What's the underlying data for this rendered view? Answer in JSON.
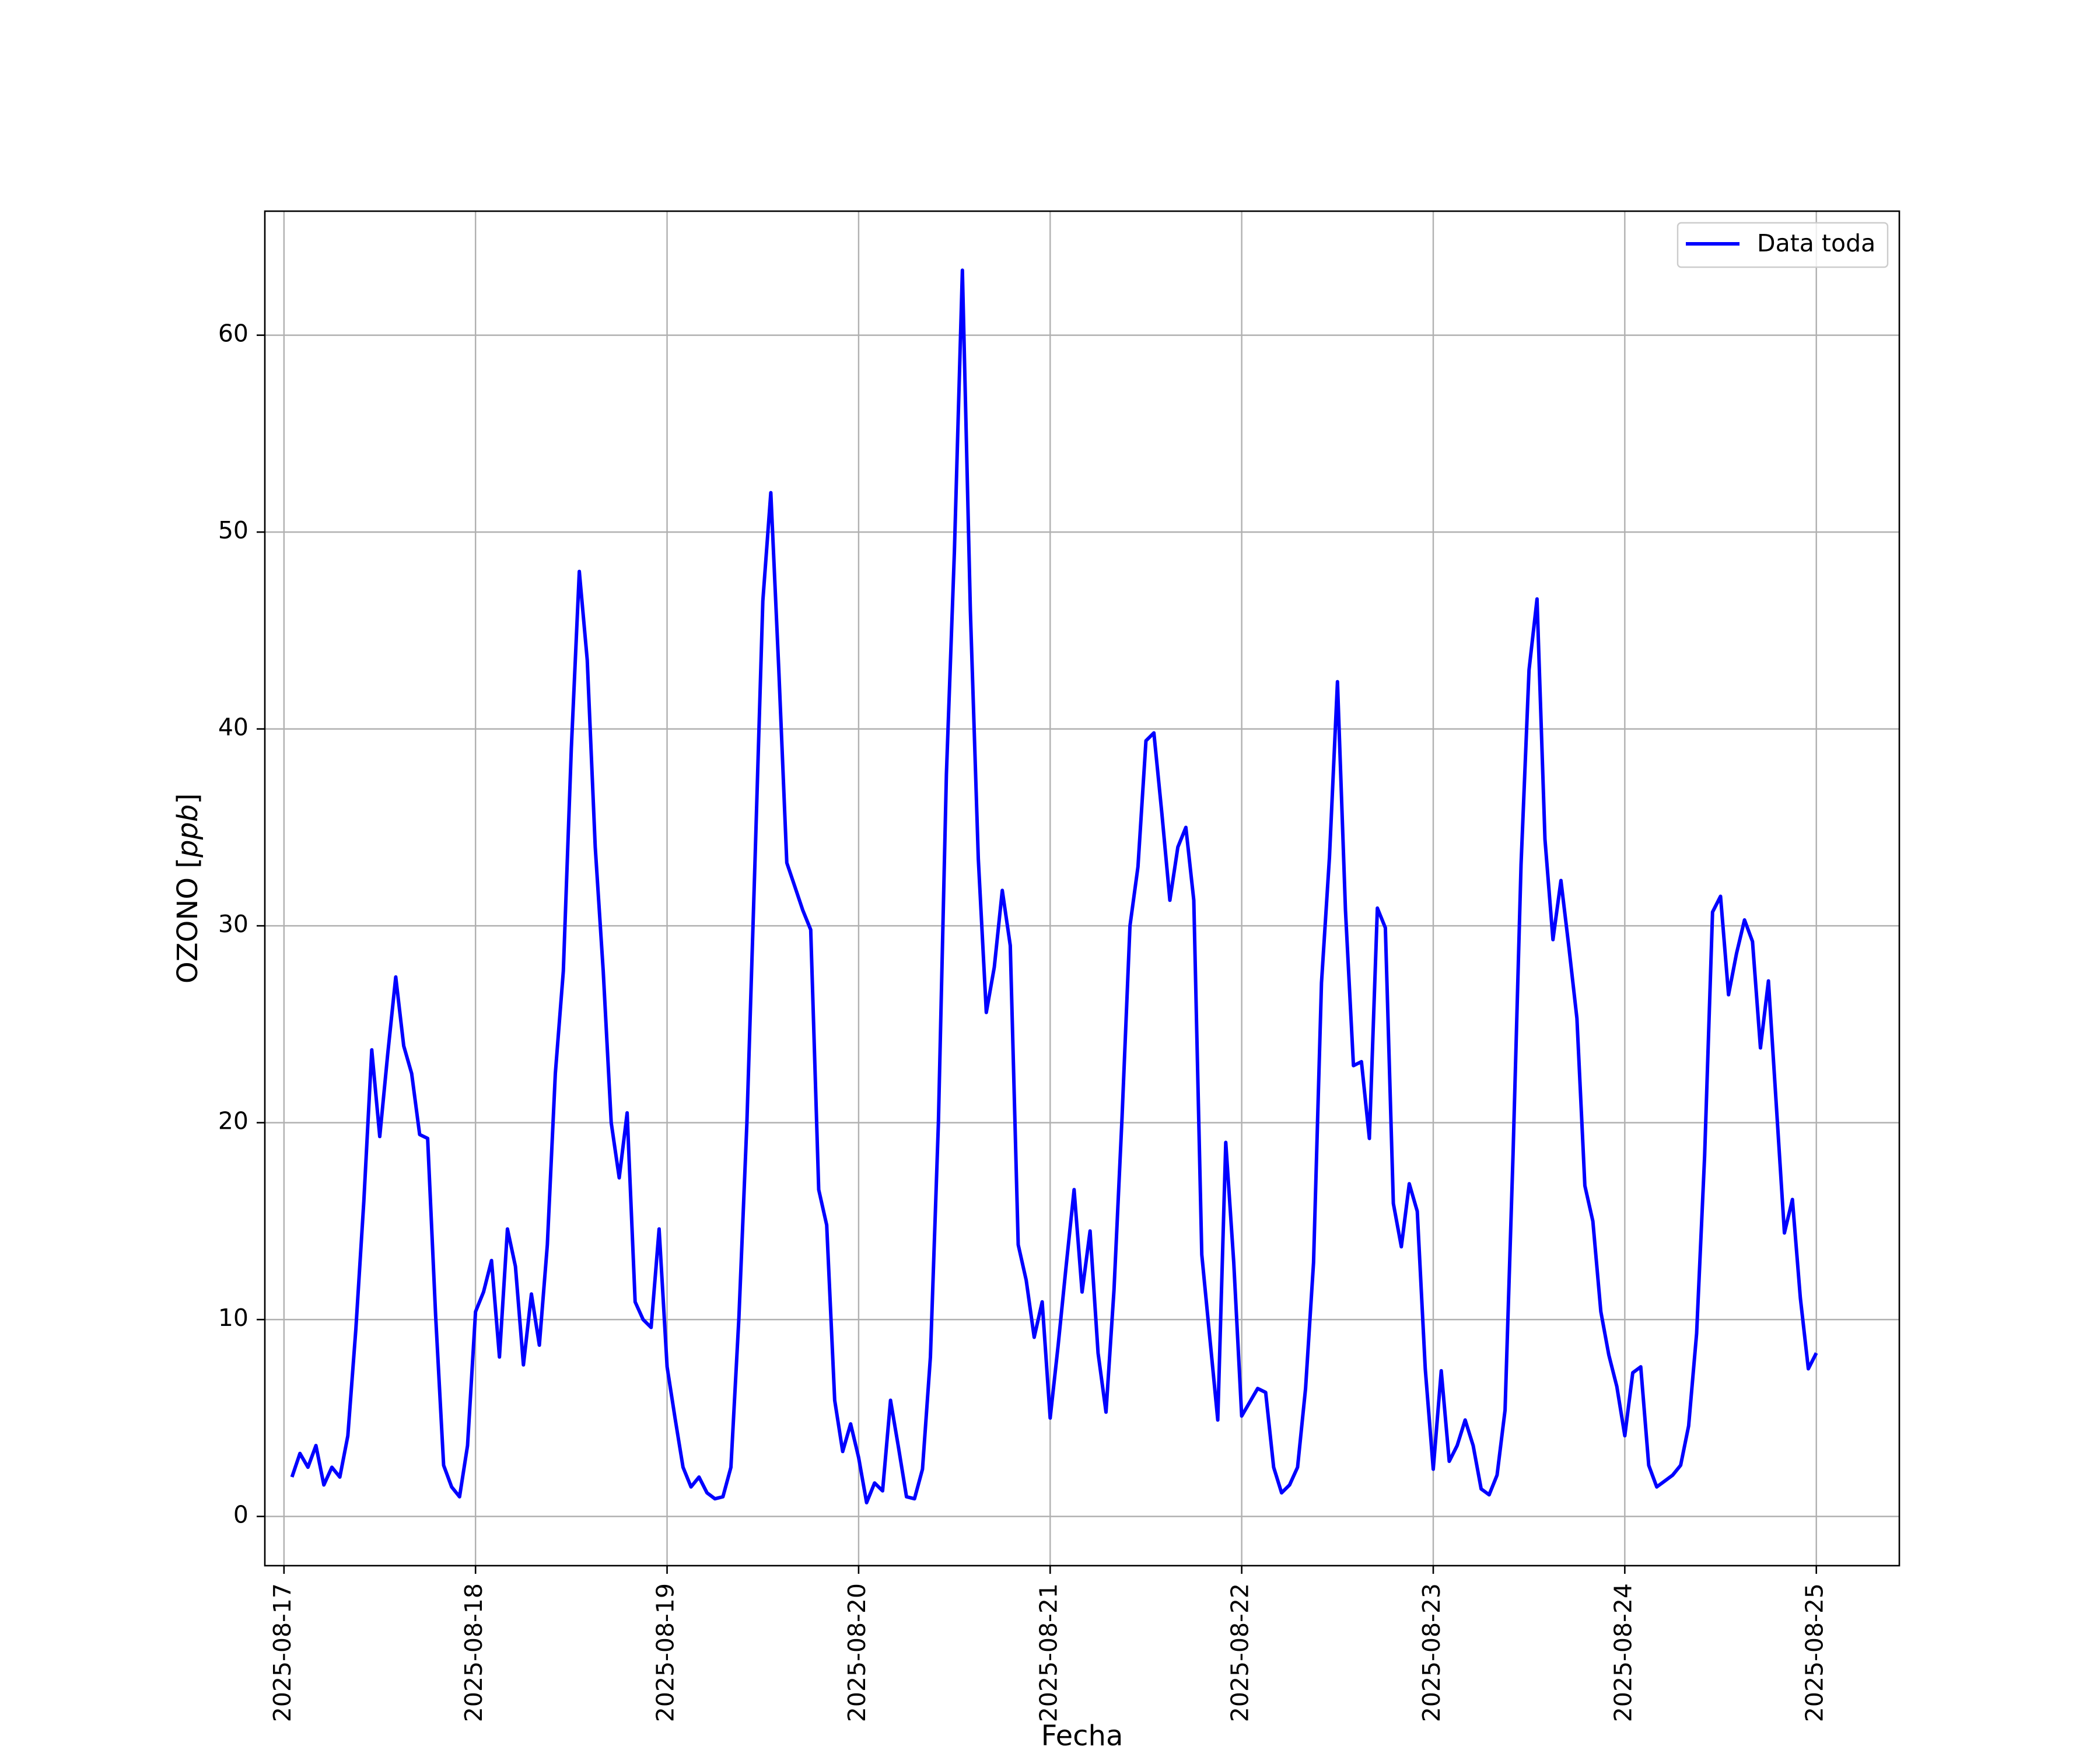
{
  "chart_data": {
    "type": "line",
    "xlabel": "Fecha",
    "ylabel": "OZONO [ppb]",
    "ylabel_main": "OZONO",
    "ylabel_unit": "ppb",
    "x_range": [
      "2025-08-16T21:36",
      "2025-08-25T10:24"
    ],
    "ylim": [
      -2.5,
      66.3
    ],
    "grid": true,
    "legend_position": "upper right",
    "x_ticks": [
      "2025-08-17",
      "2025-08-18",
      "2025-08-19",
      "2025-08-20",
      "2025-08-21",
      "2025-08-22",
      "2025-08-23",
      "2025-08-24",
      "2025-08-25"
    ],
    "y_ticks": [
      0,
      10,
      20,
      30,
      40,
      50,
      60
    ],
    "y_tick_labels": [
      "0",
      "10",
      "20",
      "30",
      "40",
      "50",
      "60"
    ],
    "series": [
      {
        "name": "Data toda",
        "color": "#0000ff",
        "x": [
          "2025-08-17 01:00",
          "2025-08-17 02:00",
          "2025-08-17 03:00",
          "2025-08-17 04:00",
          "2025-08-17 05:00",
          "2025-08-17 06:00",
          "2025-08-17 07:00",
          "2025-08-17 08:00",
          "2025-08-17 09:00",
          "2025-08-17 10:00",
          "2025-08-17 11:00",
          "2025-08-17 12:00",
          "2025-08-17 13:00",
          "2025-08-17 14:00",
          "2025-08-17 15:00",
          "2025-08-17 16:00",
          "2025-08-17 17:00",
          "2025-08-17 18:00",
          "2025-08-17 19:00",
          "2025-08-17 20:00",
          "2025-08-17 21:00",
          "2025-08-17 22:00",
          "2025-08-17 23:00",
          "2025-08-18 00:00",
          "2025-08-18 01:00",
          "2025-08-18 02:00",
          "2025-08-18 03:00",
          "2025-08-18 04:00",
          "2025-08-18 05:00",
          "2025-08-18 06:00",
          "2025-08-18 07:00",
          "2025-08-18 08:00",
          "2025-08-18 09:00",
          "2025-08-18 10:00",
          "2025-08-18 11:00",
          "2025-08-18 12:00",
          "2025-08-18 13:00",
          "2025-08-18 14:00",
          "2025-08-18 15:00",
          "2025-08-18 16:00",
          "2025-08-18 17:00",
          "2025-08-18 18:00",
          "2025-08-18 19:00",
          "2025-08-18 20:00",
          "2025-08-18 21:00",
          "2025-08-18 22:00",
          "2025-08-18 23:00",
          "2025-08-19 00:00",
          "2025-08-19 01:00",
          "2025-08-19 02:00",
          "2025-08-19 03:00",
          "2025-08-19 04:00",
          "2025-08-19 05:00",
          "2025-08-19 06:00",
          "2025-08-19 07:00",
          "2025-08-19 08:00",
          "2025-08-19 09:00",
          "2025-08-19 10:00",
          "2025-08-19 11:00",
          "2025-08-19 12:00",
          "2025-08-19 13:00",
          "2025-08-19 14:00",
          "2025-08-19 15:00",
          "2025-08-19 16:00",
          "2025-08-19 17:00",
          "2025-08-19 18:00",
          "2025-08-19 19:00",
          "2025-08-19 20:00",
          "2025-08-19 21:00",
          "2025-08-19 22:00",
          "2025-08-19 23:00",
          "2025-08-20 00:00",
          "2025-08-20 01:00",
          "2025-08-20 02:00",
          "2025-08-20 03:00",
          "2025-08-20 04:00",
          "2025-08-20 05:00",
          "2025-08-20 06:00",
          "2025-08-20 07:00",
          "2025-08-20 08:00",
          "2025-08-20 09:00",
          "2025-08-20 10:00",
          "2025-08-20 11:00",
          "2025-08-20 12:00",
          "2025-08-20 13:00",
          "2025-08-20 14:00",
          "2025-08-20 15:00",
          "2025-08-20 16:00",
          "2025-08-20 17:00",
          "2025-08-20 18:00",
          "2025-08-20 19:00",
          "2025-08-20 20:00",
          "2025-08-20 21:00",
          "2025-08-20 22:00",
          "2025-08-20 23:00",
          "2025-08-21 00:00",
          "2025-08-21 01:00",
          "2025-08-21 02:00",
          "2025-08-21 03:00",
          "2025-08-21 04:00",
          "2025-08-21 05:00",
          "2025-08-21 06:00",
          "2025-08-21 07:00",
          "2025-08-21 08:00",
          "2025-08-21 09:00",
          "2025-08-21 10:00",
          "2025-08-21 11:00",
          "2025-08-21 12:00",
          "2025-08-21 13:00",
          "2025-08-21 14:00",
          "2025-08-21 15:00",
          "2025-08-21 16:00",
          "2025-08-21 17:00",
          "2025-08-21 18:00",
          "2025-08-21 19:00",
          "2025-08-21 20:00",
          "2025-08-21 21:00",
          "2025-08-21 22:00",
          "2025-08-21 23:00",
          "2025-08-22 00:00",
          "2025-08-22 01:00",
          "2025-08-22 02:00",
          "2025-08-22 03:00",
          "2025-08-22 04:00",
          "2025-08-22 05:00",
          "2025-08-22 06:00",
          "2025-08-22 07:00",
          "2025-08-22 08:00",
          "2025-08-22 09:00",
          "2025-08-22 10:00",
          "2025-08-22 11:00",
          "2025-08-22 12:00",
          "2025-08-22 13:00",
          "2025-08-22 14:00",
          "2025-08-22 15:00",
          "2025-08-22 16:00",
          "2025-08-22 17:00",
          "2025-08-22 18:00",
          "2025-08-22 19:00",
          "2025-08-22 20:00",
          "2025-08-22 21:00",
          "2025-08-22 22:00",
          "2025-08-22 23:00",
          "2025-08-23 00:00",
          "2025-08-23 01:00",
          "2025-08-23 02:00",
          "2025-08-23 03:00",
          "2025-08-23 04:00",
          "2025-08-23 05:00",
          "2025-08-23 06:00",
          "2025-08-23 07:00",
          "2025-08-23 08:00",
          "2025-08-23 09:00",
          "2025-08-23 10:00",
          "2025-08-23 11:00",
          "2025-08-23 12:00",
          "2025-08-23 13:00",
          "2025-08-23 14:00",
          "2025-08-23 15:00",
          "2025-08-23 16:00",
          "2025-08-23 17:00",
          "2025-08-23 18:00",
          "2025-08-23 19:00",
          "2025-08-23 20:00",
          "2025-08-23 21:00",
          "2025-08-23 22:00",
          "2025-08-23 23:00",
          "2025-08-24 00:00",
          "2025-08-24 01:00",
          "2025-08-24 02:00",
          "2025-08-24 03:00",
          "2025-08-24 04:00",
          "2025-08-24 05:00",
          "2025-08-24 06:00",
          "2025-08-24 07:00",
          "2025-08-24 08:00",
          "2025-08-24 09:00",
          "2025-08-24 10:00",
          "2025-08-24 11:00",
          "2025-08-24 12:00",
          "2025-08-24 13:00",
          "2025-08-24 14:00",
          "2025-08-24 15:00",
          "2025-08-24 16:00",
          "2025-08-24 17:00",
          "2025-08-24 18:00",
          "2025-08-24 19:00",
          "2025-08-24 20:00",
          "2025-08-24 21:00",
          "2025-08-24 22:00",
          "2025-08-24 23:00",
          "2025-08-25 00:00"
        ],
        "y": [
          2.0,
          3.2,
          2.5,
          3.6,
          1.6,
          2.5,
          2.0,
          4.1,
          9.5,
          16.0,
          23.7,
          19.3,
          23.5,
          27.4,
          23.9,
          22.5,
          19.4,
          19.2,
          10.2,
          2.6,
          1.5,
          1.0,
          3.6,
          10.4,
          11.4,
          13.0,
          8.1,
          14.6,
          12.7,
          7.7,
          11.3,
          8.7,
          13.8,
          22.5,
          27.7,
          39.0,
          48.0,
          43.5,
          34.0,
          27.7,
          20.0,
          17.2,
          20.5,
          10.9,
          10.0,
          9.6,
          14.6,
          7.6,
          5.0,
          2.5,
          1.5,
          2.0,
          1.2,
          0.9,
          1.0,
          2.5,
          10.1,
          20.0,
          33.1,
          46.5,
          52.0,
          43.0,
          33.2,
          32.0,
          30.8,
          29.8,
          16.6,
          14.8,
          5.9,
          3.3,
          4.7,
          3.0,
          0.7,
          1.7,
          1.3,
          5.9,
          3.5,
          1.0,
          0.9,
          2.4,
          8.1,
          20.0,
          37.7,
          49.0,
          63.3,
          46.0,
          33.4,
          25.6,
          27.9,
          31.8,
          29.0,
          13.8,
          12.0,
          9.1,
          10.9,
          5.0,
          8.7,
          12.7,
          16.6,
          11.4,
          14.5,
          8.3,
          5.3,
          11.5,
          20.2,
          30.0,
          33.0,
          39.4,
          39.8,
          35.7,
          31.3,
          34.0,
          35.0,
          31.3,
          13.3,
          9.1,
          4.9,
          19.0,
          12.9,
          5.1,
          5.8,
          6.5,
          6.3,
          2.5,
          1.2,
          1.6,
          2.5,
          6.5,
          12.9,
          27.1,
          33.5,
          42.4,
          30.8,
          22.9,
          23.1,
          19.2,
          30.9,
          29.9,
          15.9,
          13.7,
          16.9,
          15.5,
          7.5,
          2.4,
          7.4,
          2.8,
          3.6,
          4.9,
          3.6,
          1.4,
          1.1,
          2.1,
          5.4,
          18.4,
          33.1,
          43.0,
          46.6,
          34.4,
          29.3,
          32.3,
          28.9,
          25.3,
          16.8,
          15.0,
          10.4,
          8.2,
          6.6,
          4.1,
          7.3,
          7.6,
          2.6,
          1.5,
          1.8,
          2.1,
          2.6,
          4.6,
          9.3,
          18.3,
          30.7,
          31.5,
          26.5,
          28.6,
          30.3,
          29.2,
          23.8,
          27.2,
          20.8,
          14.4,
          16.1,
          11.1,
          7.5,
          8.3
        ]
      }
    ]
  }
}
